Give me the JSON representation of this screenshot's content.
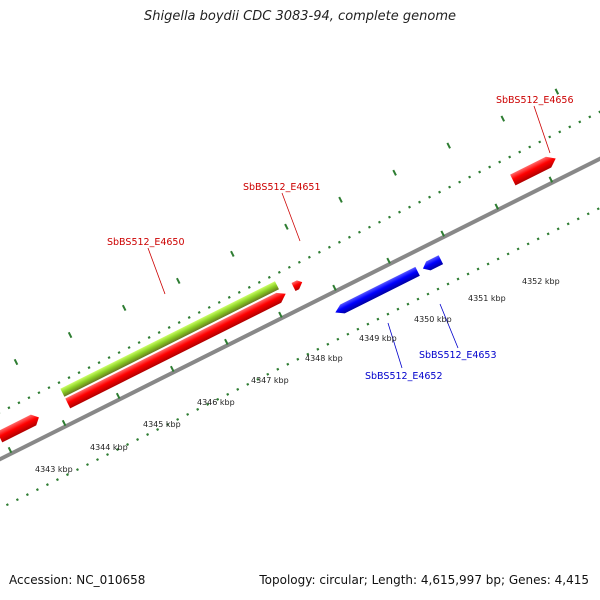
{
  "title": "Shigella boydii CDC 3083-94, complete genome",
  "footer": {
    "accession": "Accession: NC_010658",
    "summary": "Topology: circular; Length: 4,615,997 bp; Genes: 4,415"
  },
  "scale_labels": [
    "4343 kbp",
    "4344 kbp",
    "4345 kbp",
    "4346 kbp",
    "4347 kbp",
    "4348 kbp",
    "4349 kbp",
    "4350 kbp",
    "4351 kbp",
    "4352 kbp"
  ],
  "gene_labels": [
    {
      "text": "SbBS512_E4650",
      "strand": "forward"
    },
    {
      "text": "SbBS512_E4651",
      "strand": "forward"
    },
    {
      "text": "SbBS512_E4656",
      "strand": "forward"
    },
    {
      "text": "SbBS512_E4652",
      "strand": "reverse"
    },
    {
      "text": "SbBS512_E4653",
      "strand": "reverse"
    }
  ],
  "colors": {
    "forward_gene": "#ff0000",
    "reverse_gene": "#0000ff",
    "highlight_feature": "#99dd33",
    "backbone": "#888888",
    "tick_marks": "#2e7d32",
    "forward_label": "#cc0000",
    "reverse_label": "#0000cc"
  }
}
